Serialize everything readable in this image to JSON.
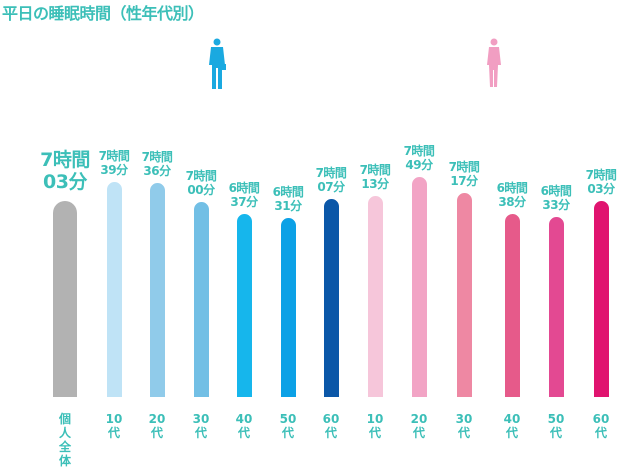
{
  "chart_data": {
    "type": "bar",
    "title": "平日の睡眠時間（性年代別）",
    "xlabel": "",
    "ylabel": "",
    "unit": "minutes",
    "ylim": [
      50,
      480
    ],
    "categories": [
      "個人全体",
      "10代",
      "20代",
      "30代",
      "40代",
      "50代",
      "60代",
      "10代",
      "20代",
      "30代",
      "40代",
      "50代",
      "60代"
    ],
    "groups": [
      "all",
      "male",
      "male",
      "male",
      "male",
      "male",
      "male",
      "female",
      "female",
      "female",
      "female",
      "female",
      "female"
    ],
    "values": [
      423,
      459,
      456,
      420,
      397,
      391,
      427,
      433,
      469,
      437,
      398,
      393,
      423
    ],
    "value_labels": [
      [
        "7時間",
        "03分"
      ],
      [
        "7時間",
        "39分"
      ],
      [
        "7時間",
        "36分"
      ],
      [
        "7時間",
        "00分"
      ],
      [
        "6時間",
        "37分"
      ],
      [
        "6時間",
        "31分"
      ],
      [
        "7時間",
        "07分"
      ],
      [
        "7時間",
        "13分"
      ],
      [
        "7時間",
        "49分"
      ],
      [
        "7時間",
        "17分"
      ],
      [
        "6時間",
        "38分"
      ],
      [
        "6時間",
        "33分"
      ],
      [
        "7時間",
        "03分"
      ]
    ],
    "x_labels": [
      [
        "個",
        "人",
        "全",
        "体"
      ],
      [
        "10",
        "代"
      ],
      [
        "20",
        "代"
      ],
      [
        "30",
        "代"
      ],
      [
        "40",
        "代"
      ],
      [
        "50",
        "代"
      ],
      [
        "60",
        "代"
      ],
      [
        "10",
        "代"
      ],
      [
        "20",
        "代"
      ],
      [
        "30",
        "代"
      ],
      [
        "40",
        "代"
      ],
      [
        "50",
        "代"
      ],
      [
        "60",
        "代"
      ]
    ],
    "colors": [
      "#b2b2b2",
      "#bfe3f6",
      "#90cbea",
      "#72bfe5",
      "#16b6ec",
      "#0ca1e6",
      "#0b57a8",
      "#f6c6da",
      "#f2a4c5",
      "#ee88a3",
      "#e65a8a",
      "#e34992",
      "#e0146f"
    ],
    "legend_icons": [
      "male-figure-icon",
      "female-figure-icon"
    ]
  }
}
